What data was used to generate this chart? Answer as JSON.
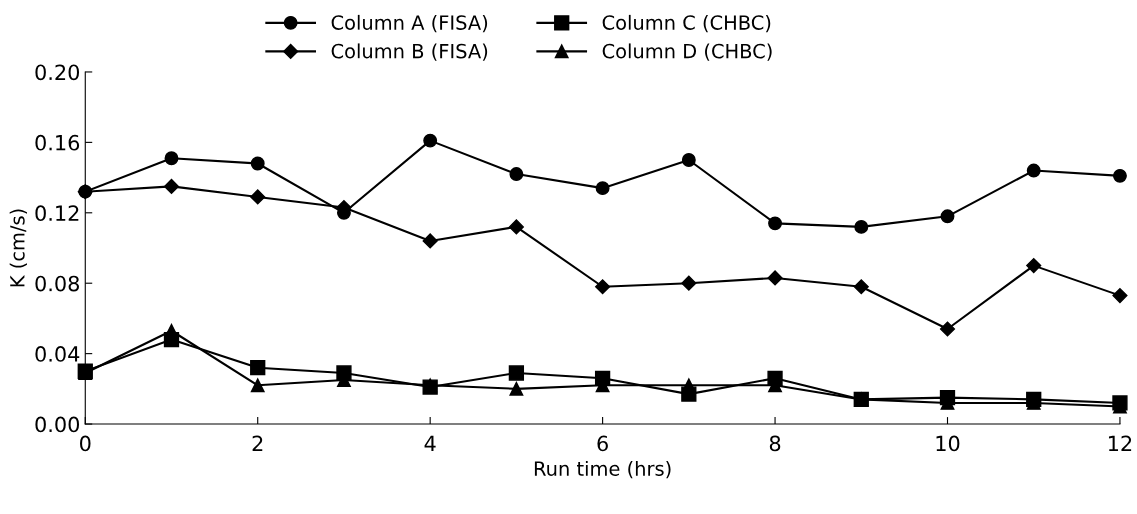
{
  "chart_data": {
    "type": "line",
    "xlabel": "Run time (hrs)",
    "ylabel": "K (cm/s)",
    "x": [
      0,
      1,
      2,
      3,
      4,
      5,
      6,
      7,
      8,
      9,
      10,
      11,
      12
    ],
    "xlim": [
      0,
      12
    ],
    "xticks": [
      0,
      2,
      4,
      6,
      8,
      10,
      12
    ],
    "ylim": [
      0,
      0.2
    ],
    "yticks": [
      {
        "value": 0,
        "label": "0.00"
      },
      {
        "value": 0.04,
        "label": "0.04"
      },
      {
        "value": 0.08,
        "label": "0.08"
      },
      {
        "value": 0.12,
        "label": "0.12"
      },
      {
        "value": 0.16,
        "label": "0.16"
      },
      {
        "value": 0.2,
        "label": "0.20"
      }
    ],
    "grid": false,
    "legend": "top",
    "line_style": "solid",
    "series": [
      {
        "name": "Column A (FISA)",
        "color": "#000000",
        "marker": "circle",
        "values": [
          0.132,
          0.151,
          0.148,
          0.12,
          0.161,
          0.142,
          0.134,
          0.15,
          0.114,
          0.112,
          0.118,
          0.144,
          0.141
        ]
      },
      {
        "name": "Column B (FISA)",
        "color": "#000000",
        "marker": "diamond",
        "values": [
          0.132,
          0.135,
          0.129,
          0.123,
          0.104,
          0.112,
          0.078,
          0.08,
          0.083,
          0.078,
          0.054,
          0.09,
          0.073
        ]
      },
      {
        "name": "Column C (CHBC)",
        "color": "#000000",
        "marker": "square",
        "values": [
          0.03,
          0.048,
          0.032,
          0.029,
          0.021,
          0.029,
          0.026,
          0.017,
          0.026,
          0.014,
          0.015,
          0.014,
          0.012
        ]
      },
      {
        "name": "Column D (CHBC)",
        "color": "#000000",
        "marker": "triangle",
        "values": [
          0.029,
          0.053,
          0.022,
          0.025,
          0.022,
          0.02,
          0.022,
          0.022,
          0.022,
          0.014,
          0.012,
          0.012,
          0.01
        ]
      }
    ]
  }
}
